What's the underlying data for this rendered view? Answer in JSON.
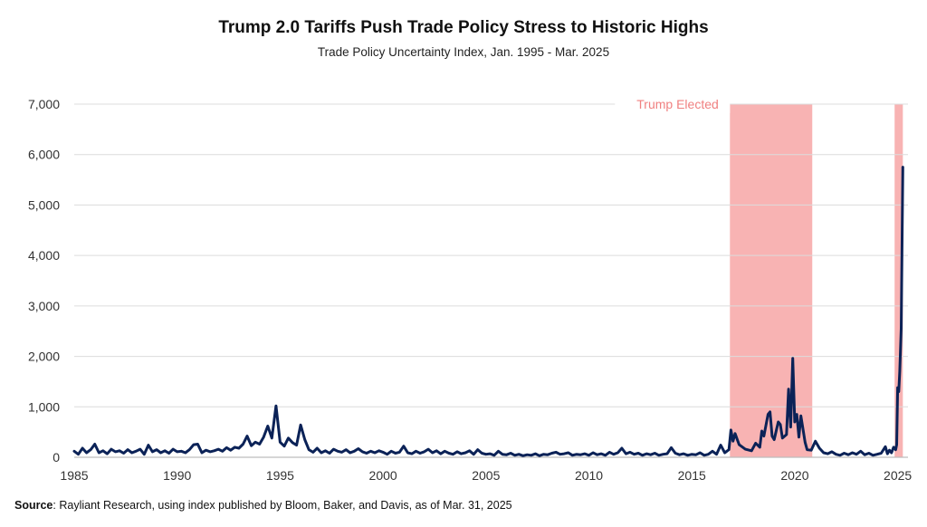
{
  "chart_data": {
    "type": "line",
    "title": "Trump 2.0 Tariffs Push Trade Policy Stress to Historic Highs",
    "subtitle": "Trade Policy Uncertainty Index, Jan. 1995 - Mar. 2025",
    "xlabel": "",
    "ylabel": "",
    "xlim": [
      1985,
      2025.5
    ],
    "ylim": [
      0,
      7000
    ],
    "x_ticks": [
      1985,
      1990,
      1995,
      2000,
      2005,
      2010,
      2015,
      2020,
      2025
    ],
    "y_ticks": [
      0,
      1000,
      2000,
      3000,
      4000,
      5000,
      6000,
      7000
    ],
    "y_tick_labels": [
      "0",
      "1,000",
      "2,000",
      "3,000",
      "4,000",
      "5,000",
      "6,000",
      "7,000"
    ],
    "grid": "horizontal",
    "line_color": "#0b2257",
    "shade_color": "#f8b3b3",
    "shaded_periods": [
      {
        "start": 2016.85,
        "end": 2020.85
      },
      {
        "start": 2024.85,
        "end": 2025.25
      }
    ],
    "annotations": [
      {
        "text": "Trump Elected",
        "x": 2016.3,
        "y": 7000
      }
    ],
    "series": [
      {
        "points": [
          [
            1985.0,
            120
          ],
          [
            1985.2,
            60
          ],
          [
            1985.4,
            180
          ],
          [
            1985.6,
            90
          ],
          [
            1985.8,
            150
          ],
          [
            1986.0,
            260
          ],
          [
            1986.2,
            90
          ],
          [
            1986.4,
            130
          ],
          [
            1986.6,
            70
          ],
          [
            1986.8,
            160
          ],
          [
            1987.0,
            110
          ],
          [
            1987.2,
            130
          ],
          [
            1987.4,
            80
          ],
          [
            1987.6,
            150
          ],
          [
            1987.8,
            90
          ],
          [
            1988.0,
            120
          ],
          [
            1988.2,
            160
          ],
          [
            1988.4,
            60
          ],
          [
            1988.6,
            240
          ],
          [
            1988.8,
            110
          ],
          [
            1989.0,
            150
          ],
          [
            1989.2,
            90
          ],
          [
            1989.4,
            130
          ],
          [
            1989.6,
            80
          ],
          [
            1989.8,
            160
          ],
          [
            1990.0,
            110
          ],
          [
            1990.2,
            120
          ],
          [
            1990.4,
            90
          ],
          [
            1990.6,
            150
          ],
          [
            1990.8,
            250
          ],
          [
            1991.0,
            260
          ],
          [
            1991.2,
            90
          ],
          [
            1991.4,
            140
          ],
          [
            1991.6,
            110
          ],
          [
            1991.8,
            130
          ],
          [
            1992.0,
            160
          ],
          [
            1992.2,
            120
          ],
          [
            1992.4,
            190
          ],
          [
            1992.6,
            140
          ],
          [
            1992.8,
            200
          ],
          [
            1993.0,
            180
          ],
          [
            1993.2,
            260
          ],
          [
            1993.4,
            420
          ],
          [
            1993.6,
            230
          ],
          [
            1993.8,
            300
          ],
          [
            1994.0,
            260
          ],
          [
            1994.2,
            400
          ],
          [
            1994.4,
            620
          ],
          [
            1994.6,
            380
          ],
          [
            1994.8,
            1020
          ],
          [
            1995.0,
            300
          ],
          [
            1995.2,
            220
          ],
          [
            1995.4,
            380
          ],
          [
            1995.6,
            290
          ],
          [
            1995.8,
            240
          ],
          [
            1996.0,
            640
          ],
          [
            1996.2,
            350
          ],
          [
            1996.4,
            150
          ],
          [
            1996.6,
            100
          ],
          [
            1996.8,
            180
          ],
          [
            1997.0,
            90
          ],
          [
            1997.2,
            130
          ],
          [
            1997.4,
            80
          ],
          [
            1997.6,
            160
          ],
          [
            1997.8,
            120
          ],
          [
            1998.0,
            100
          ],
          [
            1998.2,
            150
          ],
          [
            1998.4,
            90
          ],
          [
            1998.6,
            120
          ],
          [
            1998.8,
            170
          ],
          [
            1999.0,
            110
          ],
          [
            1999.2,
            80
          ],
          [
            1999.4,
            120
          ],
          [
            1999.6,
            90
          ],
          [
            1999.8,
            130
          ],
          [
            2000.0,
            100
          ],
          [
            2000.2,
            60
          ],
          [
            2000.4,
            120
          ],
          [
            2000.6,
            80
          ],
          [
            2000.8,
            100
          ],
          [
            2001.0,
            220
          ],
          [
            2001.2,
            90
          ],
          [
            2001.4,
            70
          ],
          [
            2001.6,
            120
          ],
          [
            2001.8,
            80
          ],
          [
            2002.0,
            110
          ],
          [
            2002.2,
            160
          ],
          [
            2002.4,
            90
          ],
          [
            2002.6,
            130
          ],
          [
            2002.8,
            70
          ],
          [
            2003.0,
            120
          ],
          [
            2003.2,
            80
          ],
          [
            2003.4,
            60
          ],
          [
            2003.6,
            110
          ],
          [
            2003.8,
            70
          ],
          [
            2004.0,
            90
          ],
          [
            2004.2,
            130
          ],
          [
            2004.4,
            60
          ],
          [
            2004.6,
            150
          ],
          [
            2004.8,
            80
          ],
          [
            2005.0,
            60
          ],
          [
            2005.2,
            70
          ],
          [
            2005.4,
            40
          ],
          [
            2005.6,
            120
          ],
          [
            2005.8,
            60
          ],
          [
            2006.0,
            50
          ],
          [
            2006.2,
            80
          ],
          [
            2006.4,
            40
          ],
          [
            2006.6,
            60
          ],
          [
            2006.8,
            30
          ],
          [
            2007.0,
            50
          ],
          [
            2007.2,
            40
          ],
          [
            2007.4,
            70
          ],
          [
            2007.6,
            30
          ],
          [
            2007.8,
            60
          ],
          [
            2008.0,
            50
          ],
          [
            2008.2,
            80
          ],
          [
            2008.4,
            100
          ],
          [
            2008.6,
            60
          ],
          [
            2008.8,
            70
          ],
          [
            2009.0,
            90
          ],
          [
            2009.2,
            40
          ],
          [
            2009.4,
            60
          ],
          [
            2009.6,
            50
          ],
          [
            2009.8,
            70
          ],
          [
            2010.0,
            40
          ],
          [
            2010.2,
            90
          ],
          [
            2010.4,
            50
          ],
          [
            2010.6,
            70
          ],
          [
            2010.8,
            40
          ],
          [
            2011.0,
            100
          ],
          [
            2011.2,
            60
          ],
          [
            2011.4,
            90
          ],
          [
            2011.6,
            180
          ],
          [
            2011.8,
            70
          ],
          [
            2012.0,
            100
          ],
          [
            2012.2,
            60
          ],
          [
            2012.4,
            80
          ],
          [
            2012.6,
            40
          ],
          [
            2012.8,
            70
          ],
          [
            2013.0,
            50
          ],
          [
            2013.2,
            80
          ],
          [
            2013.4,
            40
          ],
          [
            2013.6,
            60
          ],
          [
            2013.8,
            70
          ],
          [
            2014.0,
            190
          ],
          [
            2014.2,
            80
          ],
          [
            2014.4,
            50
          ],
          [
            2014.6,
            70
          ],
          [
            2014.8,
            40
          ],
          [
            2015.0,
            60
          ],
          [
            2015.2,
            50
          ],
          [
            2015.4,
            90
          ],
          [
            2015.6,
            40
          ],
          [
            2015.8,
            60
          ],
          [
            2016.0,
            120
          ],
          [
            2016.2,
            60
          ],
          [
            2016.4,
            240
          ],
          [
            2016.6,
            90
          ],
          [
            2016.8,
            150
          ],
          [
            2016.9,
            540
          ],
          [
            2017.0,
            320
          ],
          [
            2017.1,
            470
          ],
          [
            2017.3,
            250
          ],
          [
            2017.6,
            160
          ],
          [
            2017.9,
            130
          ],
          [
            2018.1,
            280
          ],
          [
            2018.3,
            200
          ],
          [
            2018.4,
            520
          ],
          [
            2018.5,
            420
          ],
          [
            2018.7,
            850
          ],
          [
            2018.8,
            900
          ],
          [
            2018.9,
            420
          ],
          [
            2019.0,
            350
          ],
          [
            2019.2,
            700
          ],
          [
            2019.3,
            650
          ],
          [
            2019.4,
            380
          ],
          [
            2019.6,
            450
          ],
          [
            2019.7,
            1350
          ],
          [
            2019.8,
            600
          ],
          [
            2019.9,
            1960
          ],
          [
            2020.0,
            700
          ],
          [
            2020.1,
            850
          ],
          [
            2020.2,
            400
          ],
          [
            2020.3,
            820
          ],
          [
            2020.5,
            300
          ],
          [
            2020.6,
            150
          ],
          [
            2020.8,
            140
          ],
          [
            2021.0,
            320
          ],
          [
            2021.2,
            180
          ],
          [
            2021.4,
            90
          ],
          [
            2021.6,
            70
          ],
          [
            2021.8,
            110
          ],
          [
            2022.0,
            60
          ],
          [
            2022.2,
            40
          ],
          [
            2022.4,
            80
          ],
          [
            2022.6,
            50
          ],
          [
            2022.8,
            90
          ],
          [
            2023.0,
            60
          ],
          [
            2023.2,
            120
          ],
          [
            2023.4,
            50
          ],
          [
            2023.6,
            80
          ],
          [
            2023.8,
            40
          ],
          [
            2024.0,
            60
          ],
          [
            2024.2,
            80
          ],
          [
            2024.4,
            210
          ],
          [
            2024.5,
            70
          ],
          [
            2024.6,
            140
          ],
          [
            2024.7,
            90
          ],
          [
            2024.8,
            200
          ],
          [
            2024.9,
            150
          ],
          [
            2024.95,
            250
          ],
          [
            2025.0,
            1380
          ],
          [
            2025.05,
            1300
          ],
          [
            2025.1,
            1700
          ],
          [
            2025.17,
            2550
          ],
          [
            2025.25,
            5750
          ]
        ]
      }
    ]
  },
  "source": {
    "label": "Source",
    "text": ": Rayliant Research, using index published by Bloom, Baker, and Davis, as of Mar. 31, 2025"
  }
}
